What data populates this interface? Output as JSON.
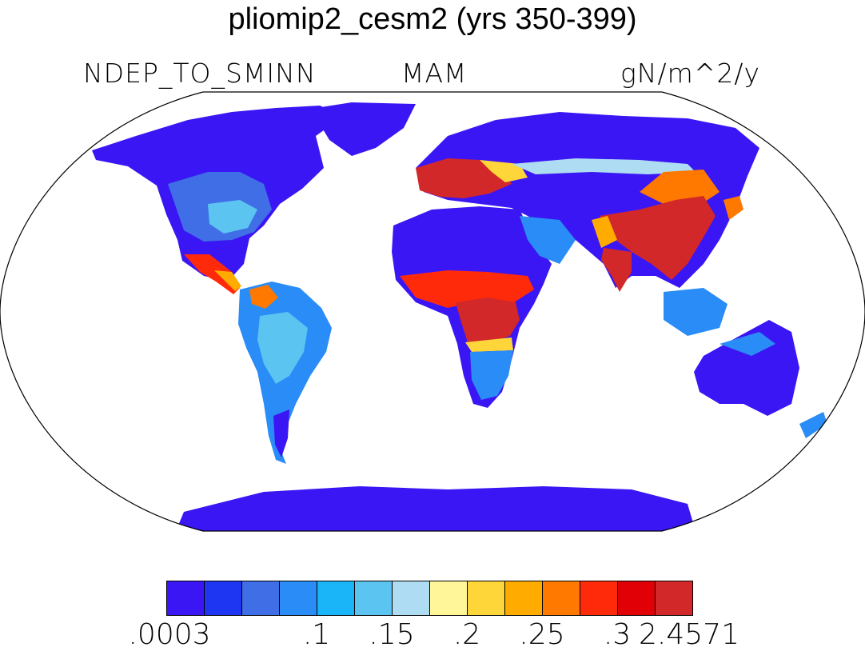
{
  "title": "pliomip2_cesm2 (yrs 350-399)",
  "variable": "NDEP_TO_SMINN",
  "season": "MAM",
  "units": "gN/m^2/y",
  "colorbar": {
    "colors": [
      "#3b16f5",
      "#1e35f2",
      "#3f6ee6",
      "#2a8cf6",
      "#1ab4f8",
      "#5bc4f1",
      "#aedcf2",
      "#fff69a",
      "#ffd639",
      "#ffab00",
      "#ff7800",
      "#ff2a0a",
      "#e00006",
      "#d2282a"
    ],
    "labels": [
      ".0003",
      ".1",
      ".15",
      ".2",
      ".25",
      ".3",
      "2.4571"
    ],
    "label_boundary_index": [
      0,
      4,
      6,
      8,
      10,
      12,
      14
    ]
  },
  "map": {
    "projection": "Robinson",
    "land_color": "#3b16f5",
    "high_deposition_color": "#d2282a"
  }
}
